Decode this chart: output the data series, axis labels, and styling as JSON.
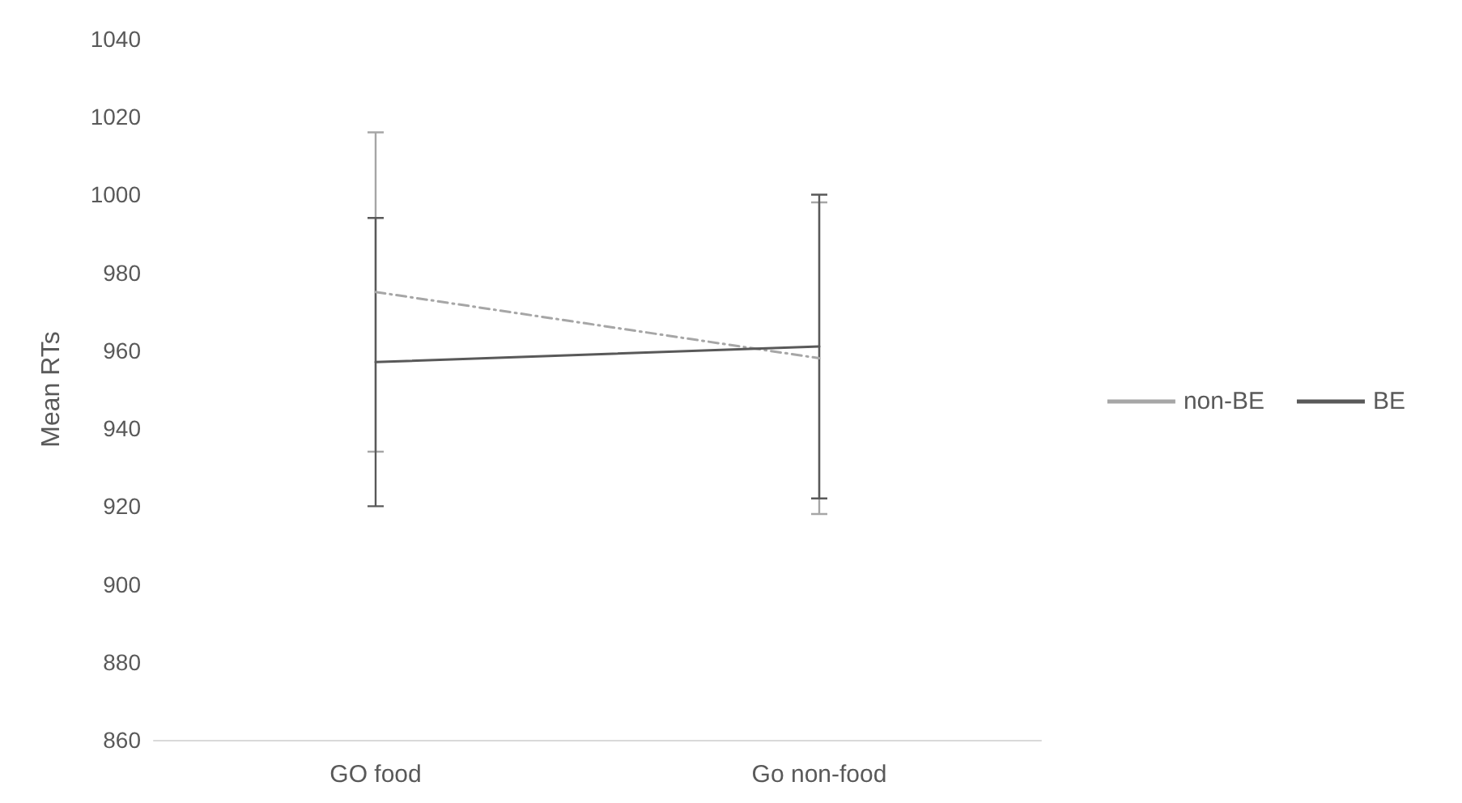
{
  "chart_data": {
    "type": "line",
    "ylabel": "Mean RTs",
    "categories": [
      "GO food",
      "Go non-food"
    ],
    "series": [
      {
        "name": "non-BE",
        "color": "#a6a6a6",
        "line_style": "dashed",
        "values": [
          975,
          958
        ],
        "errors": [
          41,
          40
        ]
      },
      {
        "name": "BE",
        "color": "#595959",
        "line_style": "solid",
        "values": [
          957,
          961
        ],
        "errors": [
          37,
          39
        ]
      }
    ],
    "ylim": [
      860,
      1040
    ],
    "yticks": [
      860,
      880,
      900,
      920,
      940,
      960,
      980,
      1000,
      1020,
      1040
    ],
    "grid": false,
    "legend": "right",
    "marker": "none"
  }
}
